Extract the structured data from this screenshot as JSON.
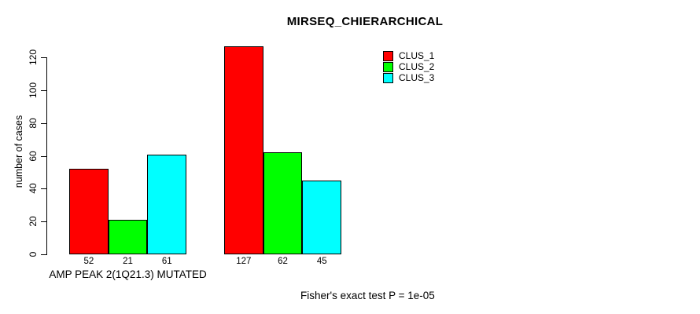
{
  "chart_data": {
    "type": "bar",
    "title": "MIRSEQ_CHIERARCHICAL",
    "ylabel": "number of cases",
    "xlabel": "",
    "ylim": [
      0,
      127
    ],
    "yticks": [
      0,
      20,
      40,
      60,
      80,
      100,
      120
    ],
    "grid": false,
    "legend_position": "top-right",
    "categories": [
      "AMP PEAK 2(1Q21.3) MUTATED",
      ""
    ],
    "series": [
      {
        "name": "CLUS_1",
        "color": "#ff0000",
        "values": [
          52,
          127
        ]
      },
      {
        "name": "CLUS_2",
        "color": "#00ff00",
        "values": [
          21,
          62
        ]
      },
      {
        "name": "CLUS_3",
        "color": "#00ffff",
        "values": [
          61,
          45
        ]
      }
    ],
    "bar_value_labels": [
      [
        52,
        21,
        61
      ],
      [
        127,
        62,
        45
      ]
    ],
    "annotation": "Fisher's exact test P = 1e-05"
  },
  "colors": {
    "background": "#ffffff",
    "axis": "#000000",
    "text": "#000000"
  }
}
